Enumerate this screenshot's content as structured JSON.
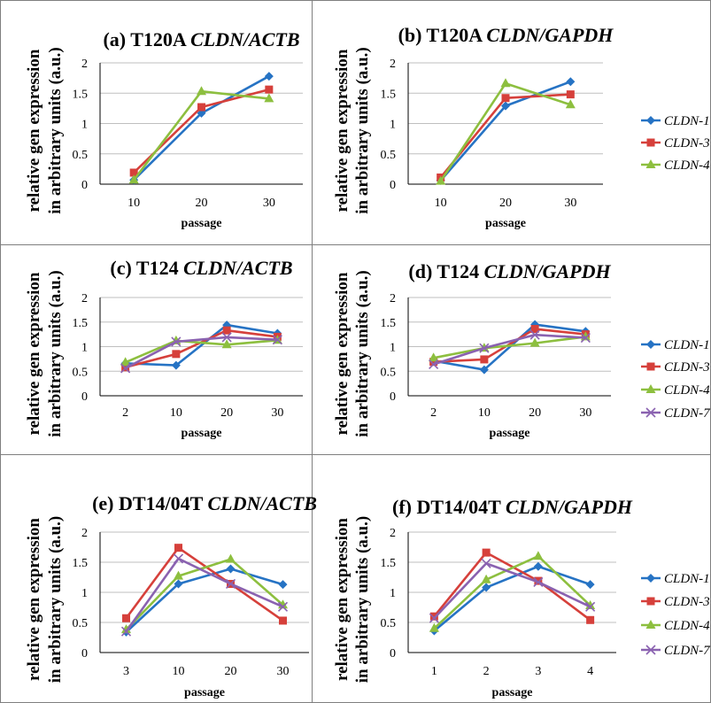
{
  "figure": {
    "panels": [
      {
        "label_prefix": "(a) T120A ",
        "label_italic": "CLDN",
        "label_suffix": "/ACTB"
      },
      {
        "label_prefix": "(b) T120A ",
        "label_italic": "CLDN",
        "label_suffix": "/GAPDH"
      },
      {
        "label_prefix": "(c) T124 ",
        "label_italic": "CLDN",
        "label_suffix": "/ACTB"
      },
      {
        "label_prefix": "(d) T124 ",
        "label_italic": "CLDN",
        "label_suffix": "/GAPDH"
      },
      {
        "label_prefix": "(e) DT14/04T ",
        "label_italic": "CLDN",
        "label_suffix": "/ACTB"
      },
      {
        "label_prefix": "(f) DT14/04T ",
        "label_italic": "CLDN",
        "label_suffix": "/GAPDH"
      }
    ]
  },
  "colors": {
    "CLDN-1": "#2673c4",
    "CLDN-3": "#d6403b",
    "CLDN-4": "#8dbf3f",
    "CLDN-7": "#8a62b0",
    "grid": "#bfbfbf",
    "border": "#7f7f7f"
  },
  "chart_data": [
    {
      "type": "line",
      "title": "(a) T120A CLDN/ACTB",
      "xlabel": "passage",
      "ylabel": [
        "relative gen expression",
        "in arbitrary units (a.u.)"
      ],
      "categories": [
        "10",
        "20",
        "30"
      ],
      "ylim": [
        0,
        2
      ],
      "yticks": [
        "0",
        "0.5",
        "1",
        "1.5",
        "2"
      ],
      "grid": true,
      "legend": "none",
      "series": [
        {
          "name": "CLDN-1",
          "marker": "diamond",
          "values": [
            0.07,
            1.17,
            1.78
          ]
        },
        {
          "name": "CLDN-3",
          "marker": "square",
          "values": [
            0.19,
            1.27,
            1.56
          ]
        },
        {
          "name": "CLDN-4",
          "marker": "triangle",
          "values": [
            0.07,
            1.53,
            1.41
          ]
        }
      ]
    },
    {
      "type": "line",
      "title": "(b) T120A CLDN/GAPDH",
      "xlabel": "passage",
      "ylabel": [
        "relative gen expression",
        "in arbitrary units (a.u.)"
      ],
      "categories": [
        "10",
        "20",
        "30"
      ],
      "ylim": [
        0,
        2
      ],
      "yticks": [
        "0",
        "0.5",
        "1",
        "1.5",
        "2"
      ],
      "grid": true,
      "legend": "right",
      "series": [
        {
          "name": "CLDN-1",
          "marker": "diamond",
          "values": [
            0.06,
            1.29,
            1.69
          ]
        },
        {
          "name": "CLDN-3",
          "marker": "square",
          "values": [
            0.11,
            1.42,
            1.48
          ]
        },
        {
          "name": "CLDN-4",
          "marker": "triangle",
          "values": [
            0.05,
            1.66,
            1.31
          ]
        }
      ]
    },
    {
      "type": "line",
      "title": "(c) T124 CLDN/ACTB",
      "xlabel": "passage",
      "ylabel": [
        "relative gen expression",
        "in arbitrary units (a.u.)"
      ],
      "categories": [
        "2",
        "10",
        "20",
        "30"
      ],
      "ylim": [
        0,
        2
      ],
      "yticks": [
        "0",
        "0.5",
        "1",
        "1.5",
        "2"
      ],
      "grid": true,
      "legend": "none",
      "series": [
        {
          "name": "CLDN-1",
          "marker": "diamond",
          "values": [
            0.66,
            0.62,
            1.44,
            1.27
          ]
        },
        {
          "name": "CLDN-3",
          "marker": "square",
          "values": [
            0.58,
            0.85,
            1.33,
            1.2
          ]
        },
        {
          "name": "CLDN-4",
          "marker": "triangle",
          "values": [
            0.68,
            1.12,
            1.04,
            1.13
          ]
        },
        {
          "name": "CLDN-7",
          "marker": "x",
          "values": [
            0.56,
            1.1,
            1.19,
            1.14
          ]
        }
      ]
    },
    {
      "type": "line",
      "title": "(d) T124 CLDN/GAPDH",
      "xlabel": "passage",
      "ylabel": [
        "relative gen expression",
        "in arbitrary units (a.u.)"
      ],
      "categories": [
        "2",
        "10",
        "20",
        "30"
      ],
      "ylim": [
        0,
        2
      ],
      "yticks": [
        "0",
        "0.5",
        "1",
        "1.5",
        "2"
      ],
      "grid": true,
      "legend": "right",
      "series": [
        {
          "name": "CLDN-1",
          "marker": "diamond",
          "values": [
            0.71,
            0.53,
            1.45,
            1.31
          ]
        },
        {
          "name": "CLDN-3",
          "marker": "square",
          "values": [
            0.69,
            0.74,
            1.36,
            1.25
          ]
        },
        {
          "name": "CLDN-4",
          "marker": "triangle",
          "values": [
            0.77,
            0.97,
            1.07,
            1.2
          ]
        },
        {
          "name": "CLDN-7",
          "marker": "x",
          "values": [
            0.64,
            0.97,
            1.24,
            1.18
          ]
        }
      ]
    },
    {
      "type": "line",
      "title": "(e) DT14/04T CLDN/ACTB",
      "xlabel": "passage",
      "ylabel": [
        "relative gen expression",
        "in arbitrary units (a.u.)"
      ],
      "categories": [
        "3",
        "10",
        "20",
        "30"
      ],
      "ylim": [
        0,
        2
      ],
      "yticks": [
        "0",
        "0.5",
        "1",
        "1.5",
        "2"
      ],
      "grid": true,
      "legend": "none",
      "series": [
        {
          "name": "CLDN-1",
          "marker": "diamond",
          "values": [
            0.34,
            1.14,
            1.39,
            1.13
          ]
        },
        {
          "name": "CLDN-3",
          "marker": "square",
          "values": [
            0.57,
            1.74,
            1.14,
            0.53
          ]
        },
        {
          "name": "CLDN-4",
          "marker": "triangle",
          "values": [
            0.38,
            1.27,
            1.55,
            0.79
          ]
        },
        {
          "name": "CLDN-7",
          "marker": "x",
          "values": [
            0.35,
            1.56,
            1.14,
            0.76
          ]
        }
      ]
    },
    {
      "type": "line",
      "title": "(f) DT14/04T CLDN/GAPDH",
      "xlabel": "passage",
      "ylabel": [
        "relative gen expression",
        "in arbitrary units (a.u.)"
      ],
      "categories": [
        "1",
        "2",
        "3",
        "4"
      ],
      "ylim": [
        0,
        2
      ],
      "yticks": [
        "0",
        "0.5",
        "1",
        "1.5",
        "2"
      ],
      "grid": true,
      "legend": "right",
      "series": [
        {
          "name": "CLDN-1",
          "marker": "diamond",
          "values": [
            0.36,
            1.08,
            1.43,
            1.13
          ]
        },
        {
          "name": "CLDN-3",
          "marker": "square",
          "values": [
            0.6,
            1.66,
            1.19,
            0.54
          ]
        },
        {
          "name": "CLDN-4",
          "marker": "triangle",
          "values": [
            0.4,
            1.21,
            1.6,
            0.78
          ]
        },
        {
          "name": "CLDN-7",
          "marker": "x",
          "values": [
            0.57,
            1.48,
            1.17,
            0.76
          ]
        }
      ]
    }
  ]
}
